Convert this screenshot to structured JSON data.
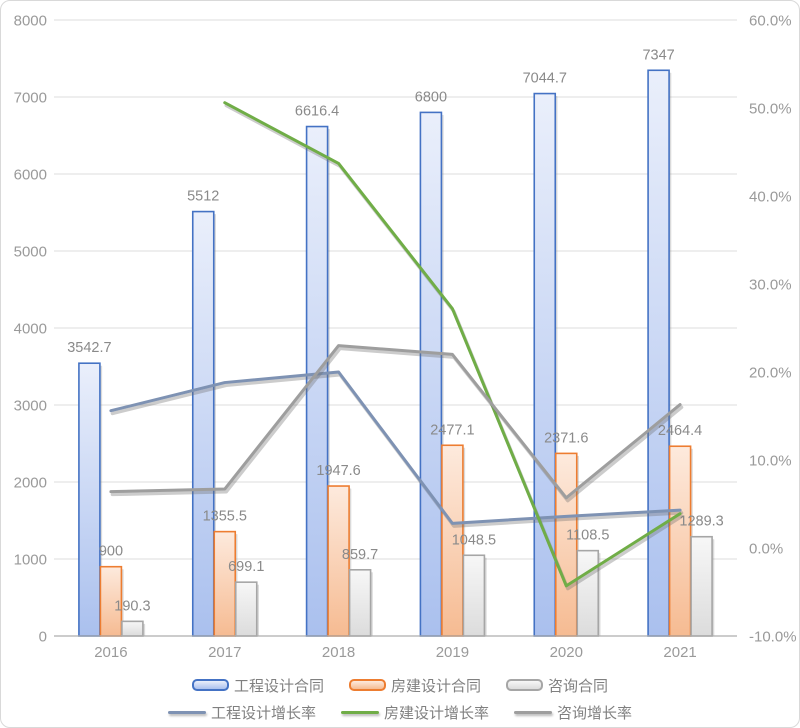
{
  "chart_data": {
    "type": "combo-bar-line",
    "title": "",
    "categories": [
      "2016",
      "2017",
      "2018",
      "2019",
      "2020",
      "2021"
    ],
    "bar_series": [
      {
        "name": "工程设计合同",
        "values": [
          3542.7,
          5512,
          6616.4,
          6800,
          7044.7,
          7347
        ],
        "labels": [
          "3542.7",
          "5512",
          "6616.4",
          "6800",
          "7044.7",
          "7347"
        ],
        "border_color": "#4472c4",
        "fill_top": "#eaeffb",
        "fill_bottom": "#aac0ee"
      },
      {
        "name": "房建设计合同",
        "values": [
          900,
          1355.5,
          1947.6,
          2477.1,
          2371.6,
          2464.4
        ],
        "labels": [
          "900",
          "1355.5",
          "1947.6",
          "2477.1",
          "2371.6",
          "2464.4"
        ],
        "border_color": "#ed7d31",
        "fill_top": "#fdeadd",
        "fill_bottom": "#f6bb92"
      },
      {
        "name": "咨询合同",
        "values": [
          190.3,
          699.1,
          859.7,
          1048.5,
          1108.5,
          1289.3
        ],
        "labels": [
          "190.3",
          "699.1",
          "859.7",
          "1048.5",
          "1108.5",
          "1289.3"
        ],
        "border_color": "#a6a6a6",
        "fill_top": "#f7f7f7",
        "fill_bottom": "#dcdcdc"
      }
    ],
    "line_series": [
      {
        "name": "工程设计增长率",
        "color": "#7e92b3",
        "values_pct": [
          15.6,
          18.8,
          20.0,
          2.8,
          3.6,
          4.3
        ]
      },
      {
        "name": "房建设计增长率",
        "color": "#70ad47",
        "values_pct": [
          null,
          50.6,
          43.7,
          27.2,
          -4.3,
          3.9
        ]
      },
      {
        "name": "咨询增长率",
        "color": "#9e9e9e",
        "values_pct": [
          6.4,
          6.7,
          23.0,
          22.0,
          5.7,
          16.3
        ]
      }
    ],
    "left_axis": {
      "min": 0,
      "max": 8000,
      "step": 1000,
      "tick_labels": [
        "0",
        "1000",
        "2000",
        "3000",
        "4000",
        "5000",
        "6000",
        "7000",
        "8000"
      ]
    },
    "right_axis": {
      "min": -10,
      "max": 60,
      "step": 10,
      "tick_labels": [
        "-10.0%",
        "0.0%",
        "10.0%",
        "20.0%",
        "30.0%",
        "40.0%",
        "50.0%",
        "60.0%"
      ]
    },
    "grid": true,
    "legend_position": "bottom",
    "colors": {
      "gridline": "#dcdcdc",
      "axis_line": "#adadad",
      "tick_text": "#9a9a9a",
      "data_label_text": "#8a8a8a",
      "legend_text": "#808080",
      "background": "#ffffff",
      "frame_border": "#d9d9d9"
    }
  }
}
